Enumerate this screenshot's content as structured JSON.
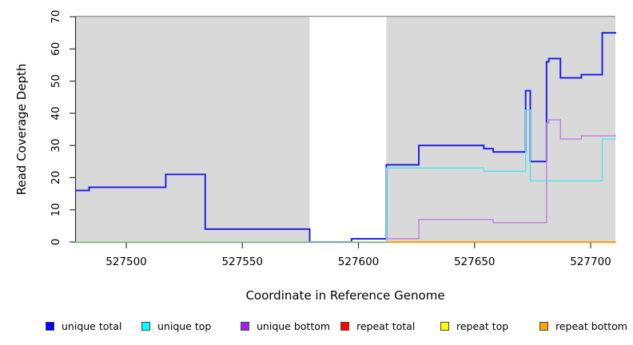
{
  "chart_data": {
    "type": "line",
    "subtype": "step",
    "title": "",
    "xlabel": "Coordinate in Reference Genome",
    "ylabel": "Read Coverage Depth",
    "xlim": [
      527478,
      527711
    ],
    "ylim": [
      0,
      70
    ],
    "x_ticks": [
      527500,
      527550,
      527600,
      527650,
      527700
    ],
    "y_ticks": [
      0,
      10,
      20,
      30,
      40,
      50,
      60,
      70
    ],
    "grid": false,
    "plot_bg_color": "#d9d9d9",
    "masked_region": {
      "x0": 527579,
      "x1": 527612,
      "fill": "#ffffff",
      "border_color": "#999999"
    },
    "legend_position": "bottom",
    "series": [
      {
        "name": "unique total",
        "color": "#2121e8",
        "line_width": 2,
        "steps": [
          [
            527478,
            16
          ],
          [
            527484,
            17
          ],
          [
            527517,
            21
          ],
          [
            527534,
            4
          ],
          [
            527579,
            0
          ],
          [
            527597,
            1
          ],
          [
            527612,
            24
          ],
          [
            527626,
            30
          ],
          [
            527654,
            29
          ],
          [
            527658,
            28
          ],
          [
            527672,
            47
          ],
          [
            527674,
            25
          ],
          [
            527681,
            56
          ],
          [
            527682,
            57
          ],
          [
            527687,
            51
          ],
          [
            527696,
            52
          ],
          [
            527705,
            65
          ]
        ],
        "x_end": 527711
      },
      {
        "name": "unique top",
        "color": "#52e2ec",
        "line_width": 1.4,
        "steps": [
          [
            527612,
            0
          ],
          [
            527612,
            23
          ],
          [
            527654,
            22
          ],
          [
            527672,
            41
          ],
          [
            527674,
            19
          ],
          [
            527705,
            32
          ]
        ],
        "x_end": 527711
      },
      {
        "name": "unique bottom",
        "color": "#bf7ee2",
        "line_width": 1.4,
        "steps": [
          [
            527612,
            1
          ],
          [
            527626,
            7
          ],
          [
            527658,
            6
          ],
          [
            527681,
            37
          ],
          [
            527682,
            38
          ],
          [
            527687,
            32
          ],
          [
            527696,
            33
          ]
        ],
        "x_end": 527711
      },
      {
        "name": "repeat lines at zero (left of mask)",
        "color": "#8fd98f",
        "line_width": 1.5,
        "steps": [
          [
            527478,
            0
          ]
        ],
        "x_end": 527612
      },
      {
        "name": "repeat bottom",
        "color": "#ffa500",
        "line_width": 2,
        "steps": [
          [
            527612,
            0
          ]
        ],
        "x_end": 527711
      }
    ],
    "legend": [
      {
        "label": "unique total",
        "color": "#0000ff"
      },
      {
        "label": "unique top",
        "color": "#00ffff"
      },
      {
        "label": "unique bottom",
        "color": "#a020f0"
      },
      {
        "label": "repeat total",
        "color": "#ff0000"
      },
      {
        "label": "repeat top",
        "color": "#ffff00"
      },
      {
        "label": "repeat bottom",
        "color": "#ffa500"
      }
    ]
  }
}
